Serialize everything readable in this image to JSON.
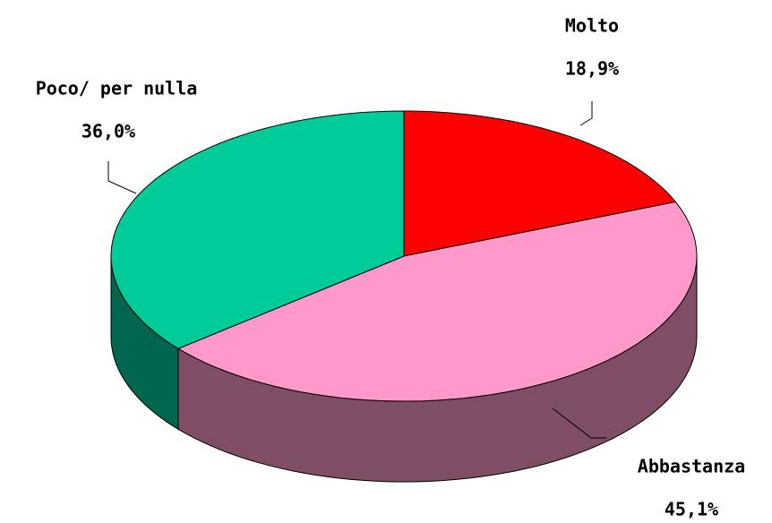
{
  "chart_data": {
    "type": "pie3d",
    "categories": [
      "Molto",
      "Abbastanza",
      "Poco/ per nulla"
    ],
    "values": [
      18.9,
      45.1,
      36.0
    ],
    "value_labels": [
      "18,9%",
      "45,1%",
      "36,0%"
    ],
    "colors": [
      "#ff0000",
      "#ff99cc",
      "#00cc99"
    ],
    "side_colors": [
      "#800000",
      "#804d66",
      "#006650"
    ]
  }
}
